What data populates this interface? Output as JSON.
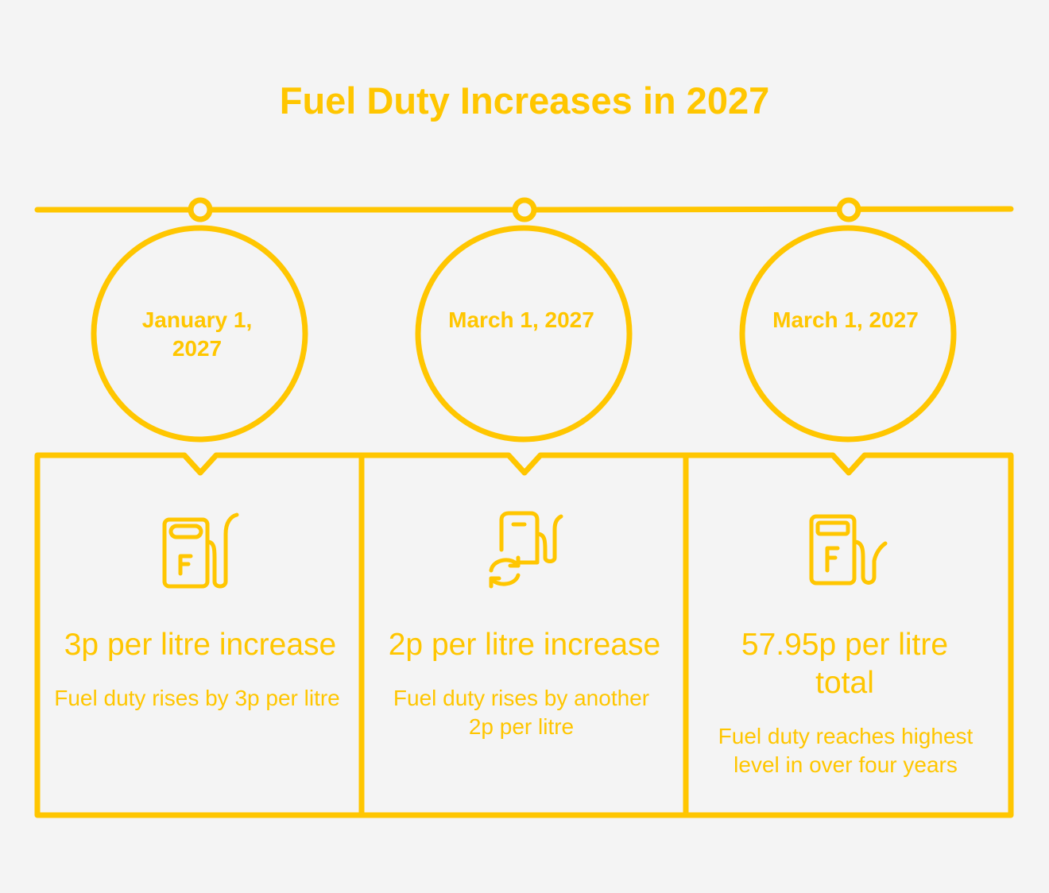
{
  "title": "Fuel Duty Increases in 2027",
  "colors": {
    "accent": "#ffc600",
    "background": "#f4f4f4"
  },
  "milestones": [
    {
      "date": "January 1, 2027",
      "icon": "fuel-pump-icon",
      "headline": "3p per litre increase",
      "description": "Fuel duty rises by 3p per litre"
    },
    {
      "date": "March 1, 2027",
      "icon": "fuel-pump-refresh-icon",
      "headline": "2p per litre increase",
      "description": "Fuel duty rises by another 2p per litre"
    },
    {
      "date": "March 1, 2027",
      "icon": "fuel-pump-icon",
      "headline": "57.95p per litre total",
      "description": "Fuel duty reaches highest level in over four years"
    }
  ]
}
